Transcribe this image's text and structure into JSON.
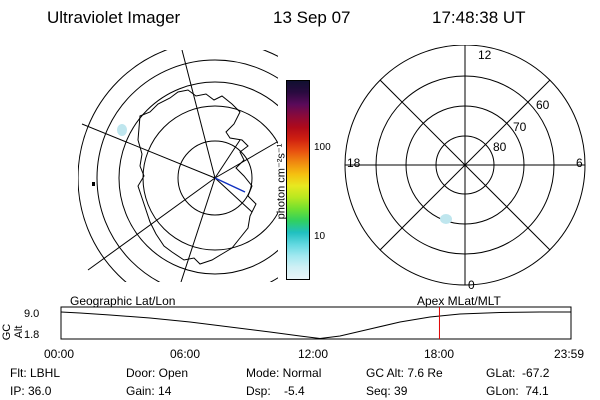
{
  "header": {
    "title": "Ultraviolet Imager",
    "date": "13 Sep 07",
    "time": "17:48:38 UT"
  },
  "colorbar": {
    "unit_label": "photon cm⁻²s⁻¹",
    "ticks": [
      "100",
      "10"
    ],
    "colors": [
      "#101030",
      "#2a0a40",
      "#5a0a5a",
      "#8a0a3a",
      "#b00a1a",
      "#d02010",
      "#e85010",
      "#f08a10",
      "#f5c010",
      "#e8e820",
      "#b8e820",
      "#70e030",
      "#30d060",
      "#20c0c0",
      "#60d8e0",
      "#a0e8f0",
      "#d0f0f5",
      "#e8f4f8"
    ]
  },
  "polar": {
    "lat_labels": [
      "80",
      "70",
      "60"
    ],
    "mlt_labels": {
      "top": "12",
      "bottom": "0",
      "left": "18",
      "right": "6"
    }
  },
  "timeline": {
    "left_label": "Geographic Lat/Lon",
    "right_label": "Apex  MLat/MLT",
    "y_axis_label": "GC Alt",
    "y_ticks": [
      "9.0",
      "1.8"
    ],
    "x_ticks": [
      "00:00",
      "06:00",
      "12:00",
      "18:00",
      "23:59"
    ],
    "current_time_hours": 17.81
  },
  "status": {
    "filter": "Flt: LBHL",
    "ip": "IP: 36.0",
    "door": "Door: Open",
    "gain": "Gain: 14",
    "mode": "Mode: Normal",
    "dsp": "Dsp:    -5.4",
    "gc_alt": "GC Alt: 7.6 Re",
    "seq": "Seq: 39",
    "glat": "GLat:  -67.2",
    "glon": "GLon:  74.1"
  }
}
